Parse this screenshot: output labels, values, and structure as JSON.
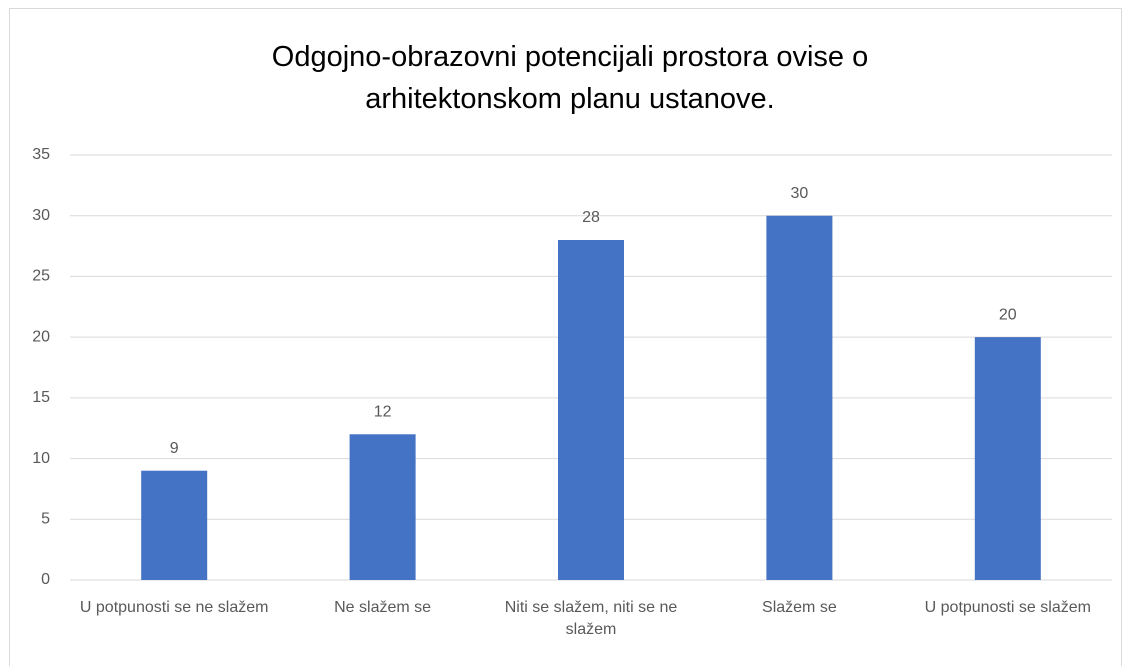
{
  "chart_data": {
    "type": "bar",
    "title": "Odgojno-obrazovni potencijali prostora ovise o arhitektonskom planu ustanove.",
    "categories": [
      "U potpunosti se ne slažem",
      "Ne slažem se",
      "Niti se slažem, niti se ne slažem",
      "Slažem se",
      "U potpunosti se slažem"
    ],
    "values": [
      9,
      12,
      28,
      30,
      20
    ],
    "color": "#4472c4",
    "ylim": [
      0,
      35
    ],
    "yticks": [
      0,
      5,
      10,
      15,
      20,
      25,
      30,
      35
    ],
    "grid": true,
    "data_labels": true
  }
}
